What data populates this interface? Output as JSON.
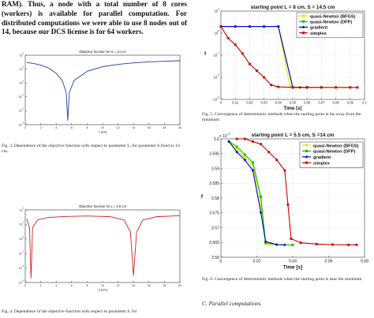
{
  "body_paragraph": "RAM). Thus, a node with a total number of 8 cores (workers) is available for parallel computation. For distributed computations we were able to use 8 nodes out of 14, because our DCS license is for 64 workers.",
  "figures": {
    "fig3": {
      "caption": "Fig. 3.  Dependence of the objective function with respect to parameter L, for parameter S fixed to 14 cm."
    },
    "fig4": {
      "caption": "Fig. 4.  Dependence of the objective function with respect to parameter S, for"
    },
    "fig5": {
      "caption": "Fig. 5.  Convergence of deterministic methods when the starting point is far away from the minimum."
    },
    "fig6": {
      "caption": "Fig. 6.  Convergence of deterministic methods when the starting point is near the minimum"
    }
  },
  "section_heading": "C.  Parallel computations",
  "colors": {
    "bfgs": "#e6e600",
    "dfp": "#00c000",
    "gradient": "#0000cc",
    "simplex": "#cc0000",
    "fig3_curve": "#1f3fa8",
    "fig4_curve": "#d22020"
  },
  "chart_data": [
    {
      "id": "fig3",
      "type": "line",
      "title": "Objective function for S = 14 cm",
      "xlabel": "L [cm]",
      "ylabel": "",
      "xlim": [
        0,
        20
      ],
      "ylim": [
        0.001,
        100
      ],
      "yscale": "log",
      "x_ticks": [
        "0",
        "2",
        "4",
        "6",
        "8",
        "10",
        "12",
        "14",
        "16",
        "18",
        "20"
      ],
      "y_ticks": [
        "10^-3",
        "10^-2",
        "10^-1",
        "10^0",
        "10^1",
        "10^2"
      ],
      "minimum_at": 5.5,
      "series": [
        {
          "values": [
            [
              0.2,
              30
            ],
            [
              1,
              26
            ],
            [
              2,
              20
            ],
            [
              3,
              12
            ],
            [
              4,
              5
            ],
            [
              4.8,
              1.5
            ],
            [
              5.3,
              0.2
            ],
            [
              5.5,
              0.002
            ],
            [
              5.7,
              0.2
            ],
            [
              6.3,
              1.5
            ],
            [
              8,
              7
            ],
            [
              10,
              15
            ],
            [
              12,
              22
            ],
            [
              14,
              28
            ],
            [
              16,
              33
            ],
            [
              18,
              37
            ],
            [
              20,
              40
            ]
          ]
        }
      ]
    },
    {
      "id": "fig4",
      "type": "line",
      "title": "Objective function for L = 5.6 cm",
      "xlabel": "S [cm]",
      "ylabel": "",
      "xlim": [
        0,
        20
      ],
      "ylim": [
        0.001,
        100
      ],
      "yscale": "log",
      "x_ticks": [
        "0",
        "2",
        "4",
        "6",
        "8",
        "10",
        "12",
        "14",
        "16",
        "18",
        "20"
      ],
      "y_ticks": [
        "10^-3",
        "10^-2",
        "10^-1",
        "10^0",
        "10^1",
        "10^2"
      ],
      "series": [
        {
          "values": [
            [
              0.2,
              25
            ],
            [
              0.55,
              6
            ],
            [
              0.75,
              0.002
            ],
            [
              0.95,
              6
            ],
            [
              1.6,
              20
            ],
            [
              3,
              30
            ],
            [
              5,
              35
            ],
            [
              8,
              38
            ],
            [
              11,
              34
            ],
            [
              12.8,
              20
            ],
            [
              13.6,
              3
            ],
            [
              14,
              0.003
            ],
            [
              14.4,
              3
            ],
            [
              15.2,
              20
            ],
            [
              17,
              34
            ],
            [
              20,
              40
            ]
          ]
        }
      ]
    },
    {
      "id": "fig5",
      "type": "line",
      "title": "starting point L = 8 cm, S = 14.5 cm",
      "xlabel": "Time [s]",
      "ylabel": "f",
      "xlim": [
        0,
        0.1
      ],
      "ylim": [
        0.001,
        10
      ],
      "yscale": "log",
      "x_ticks": [
        "0",
        "0.01",
        "0.02",
        "0.03",
        "0.04",
        "0.05",
        "0.06",
        "0.07",
        "0.08",
        "0.09",
        "0.1"
      ],
      "y_ticks": [
        "10^-3",
        "10^-2",
        "10^-1",
        "10^0",
        "10^1"
      ],
      "legend_position": "top-right",
      "series": [
        {
          "name": "quasi-Newton (BFGS)",
          "color_key": "bfgs",
          "marker": "square",
          "values": [
            [
              0.0,
              2
            ],
            [
              0.01,
              2
            ],
            [
              0.02,
              2
            ],
            [
              0.03,
              2
            ],
            [
              0.04,
              2
            ],
            [
              0.048,
              0.004
            ],
            [
              0.055,
              0.0035
            ],
            [
              0.07,
              0.0035
            ],
            [
              0.08,
              0.0035
            ],
            [
              0.09,
              0.0035
            ]
          ]
        },
        {
          "name": "quasi-Newton (DFP)",
          "color_key": "dfp",
          "marker": "square",
          "values": [
            [
              0.0,
              2
            ],
            [
              0.01,
              2
            ],
            [
              0.02,
              2
            ],
            [
              0.03,
              2
            ],
            [
              0.04,
              2
            ],
            [
              0.05,
              0.0035
            ],
            [
              0.06,
              0.0035
            ],
            [
              0.07,
              0.0035
            ]
          ]
        },
        {
          "name": "gradient",
          "color_key": "gradient",
          "marker": "diamond",
          "values": [
            [
              0.0,
              2
            ],
            [
              0.01,
              2
            ],
            [
              0.02,
              2
            ],
            [
              0.03,
              2
            ],
            [
              0.04,
              2
            ],
            [
              0.05,
              0.0035
            ],
            [
              0.055,
              0.0035
            ],
            [
              0.06,
              0.0035
            ]
          ]
        },
        {
          "name": "simplex",
          "color_key": "simplex",
          "marker": "square",
          "values": [
            [
              0.0,
              2
            ],
            [
              0.005,
              0.6
            ],
            [
              0.01,
              0.3
            ],
            [
              0.015,
              0.12
            ],
            [
              0.02,
              0.04
            ],
            [
              0.025,
              0.02
            ],
            [
              0.03,
              0.01
            ],
            [
              0.035,
              0.0045
            ],
            [
              0.04,
              0.0037
            ],
            [
              0.05,
              0.0035
            ],
            [
              0.06,
              0.0035
            ],
            [
              0.07,
              0.0035
            ],
            [
              0.08,
              0.0035
            ],
            [
              0.09,
              0.0035
            ],
            [
              0.095,
              0.0035
            ]
          ]
        }
      ]
    },
    {
      "id": "fig6",
      "type": "line",
      "title": "starting point L = 5.5 cm, S =14 cm",
      "xlabel": "Time [s]",
      "ylabel": "f",
      "y_multiplier": "x 10^-3",
      "xlim": [
        0,
        0.09
      ],
      "ylim": [
        3.555,
        3.6
      ],
      "x_ticks": [
        "0",
        "0.02",
        "0.04",
        "0.06",
        "0.08"
      ],
      "y_ticks": [
        "3.56",
        "3.565",
        "3.57",
        "3.575",
        "3.58",
        "3.585",
        "3.59",
        "3.595",
        "3.6"
      ],
      "legend_position": "top-right",
      "series": [
        {
          "name": "quasi-Newton (BFGS)",
          "color_key": "bfgs",
          "marker": "square",
          "values": [
            [
              0.005,
              3.599
            ],
            [
              0.01,
              3.596
            ],
            [
              0.015,
              3.593
            ],
            [
              0.02,
              3.59
            ],
            [
              0.025,
              3.575
            ],
            [
              0.028,
              3.56
            ],
            [
              0.035,
              3.5598
            ],
            [
              0.045,
              3.5597
            ]
          ]
        },
        {
          "name": "quasi-Newton (DFP)",
          "color_key": "dfp",
          "marker": "square",
          "values": [
            [
              0.005,
              3.599
            ],
            [
              0.01,
              3.597
            ],
            [
              0.015,
              3.594
            ],
            [
              0.02,
              3.591
            ],
            [
              0.025,
              3.578
            ],
            [
              0.028,
              3.5605
            ],
            [
              0.035,
              3.5598
            ],
            [
              0.045,
              3.5597
            ]
          ]
        },
        {
          "name": "gradient",
          "color_key": "gradient",
          "marker": "diamond",
          "values": [
            [
              0.005,
              3.599
            ],
            [
              0.01,
              3.595
            ],
            [
              0.015,
              3.592
            ],
            [
              0.02,
              3.588
            ],
            [
              0.025,
              3.572
            ],
            [
              0.028,
              3.561
            ],
            [
              0.035,
              3.5598
            ],
            [
              0.04,
              3.5597
            ]
          ]
        },
        {
          "name": "simplex",
          "color_key": "simplex",
          "marker": "square",
          "values": [
            [
              0.01,
              3.6
            ],
            [
              0.015,
              3.6
            ],
            [
              0.02,
              3.599
            ],
            [
              0.025,
              3.598
            ],
            [
              0.03,
              3.595
            ],
            [
              0.035,
              3.592
            ],
            [
              0.04,
              3.588
            ],
            [
              0.042,
              3.575
            ],
            [
              0.044,
              3.562
            ],
            [
              0.05,
              3.5605
            ],
            [
              0.06,
              3.56
            ],
            [
              0.07,
              3.5598
            ],
            [
              0.08,
              3.5597
            ],
            [
              0.085,
              3.5597
            ]
          ]
        }
      ]
    }
  ]
}
